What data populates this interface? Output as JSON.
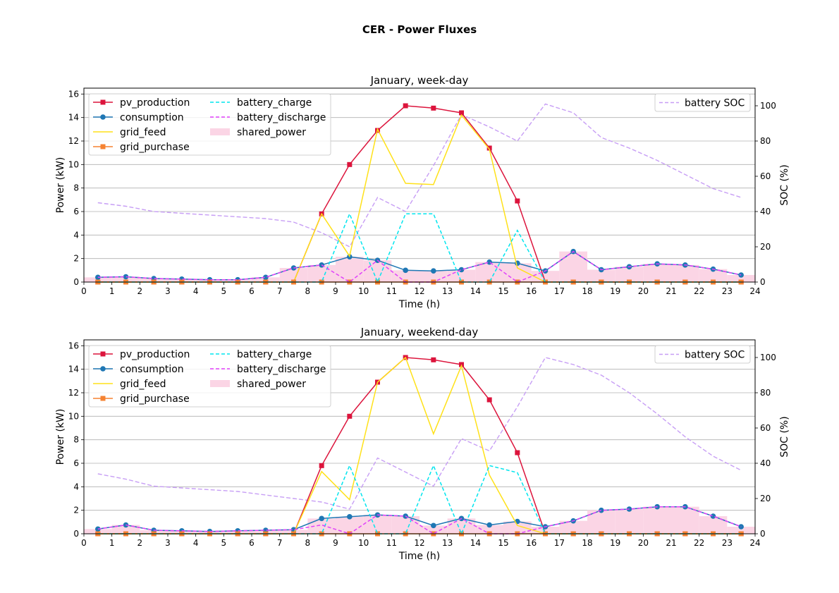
{
  "figure_title": "CER - Power Fluxes",
  "chart_data": [
    {
      "type": "line",
      "title": "January, week-day",
      "xlabel": "Time (h)",
      "ylabel": "Power (kW)",
      "y2label": "SOC (%)",
      "xlim": [
        0,
        24
      ],
      "ylim": [
        0,
        16.5
      ],
      "y2lim": [
        0,
        110
      ],
      "xticks": [
        0,
        1,
        2,
        3,
        4,
        5,
        6,
        7,
        8,
        9,
        10,
        11,
        12,
        13,
        14,
        15,
        16,
        17,
        18,
        19,
        20,
        21,
        22,
        23,
        24
      ],
      "yticks": [
        0,
        2,
        4,
        6,
        8,
        10,
        12,
        14,
        16
      ],
      "y2ticks": [
        0,
        20,
        40,
        60,
        80,
        100
      ],
      "grid": "horizontal",
      "legend_left": "upper-left",
      "legend_right": "upper-right",
      "x": [
        0.5,
        1.5,
        2.5,
        3.5,
        4.5,
        5.5,
        6.5,
        7.5,
        8.5,
        9.5,
        10.5,
        11.5,
        12.5,
        13.5,
        14.5,
        15.5,
        16.5,
        17.5,
        18.5,
        19.5,
        20.5,
        21.5,
        22.5,
        23.5
      ],
      "series": [
        {
          "name": "pv_production",
          "color": "#dc143c",
          "style": "solid",
          "marker": "square",
          "values": [
            0,
            0,
            0,
            0,
            0,
            0,
            0,
            0,
            5.8,
            10.0,
            12.9,
            15.0,
            14.8,
            14.4,
            11.4,
            6.9,
            0,
            0,
            0,
            0,
            0,
            0,
            0,
            0
          ]
        },
        {
          "name": "consumption",
          "color": "#1f77b4",
          "style": "solid",
          "marker": "circle",
          "values": [
            0.4,
            0.45,
            0.3,
            0.25,
            0.2,
            0.2,
            0.4,
            1.2,
            1.45,
            2.15,
            1.85,
            1.0,
            0.95,
            1.05,
            1.7,
            1.6,
            0.95,
            2.6,
            1.05,
            1.3,
            1.55,
            1.45,
            1.1,
            0.6
          ]
        },
        {
          "name": "grid_feed",
          "color": "#ffe119",
          "style": "solid",
          "marker": "none",
          "values": [
            0,
            0,
            0,
            0,
            0,
            0,
            0,
            0,
            5.8,
            2.2,
            13.0,
            8.4,
            8.3,
            14.2,
            11.3,
            1.2,
            0,
            0,
            0,
            0,
            0,
            0,
            0,
            0
          ]
        },
        {
          "name": "grid_purchase",
          "color": "#f58231",
          "style": "solid",
          "marker": "square",
          "values": [
            0,
            0,
            0,
            0,
            0,
            0,
            0,
            0,
            0,
            0,
            0,
            0,
            0,
            0,
            0,
            0,
            0,
            0,
            0,
            0,
            0,
            0,
            0,
            0
          ]
        },
        {
          "name": "battery_charge",
          "color": "#00e5ee",
          "style": "dashed",
          "marker": "none",
          "values": [
            0,
            0,
            0,
            0,
            0,
            0,
            0,
            0,
            0,
            5.8,
            0,
            5.8,
            5.8,
            0,
            0,
            4.4,
            0,
            0,
            0,
            0,
            0,
            0,
            0,
            0
          ]
        },
        {
          "name": "battery_discharge",
          "color": "#e040fb",
          "style": "dashed",
          "marker": "none",
          "values": [
            0.4,
            0.45,
            0.3,
            0.25,
            0.2,
            0.2,
            0.4,
            1.2,
            1.45,
            0,
            1.85,
            0,
            0,
            1.05,
            1.7,
            0,
            0.95,
            2.6,
            1.05,
            1.3,
            1.55,
            1.45,
            1.1,
            0.6
          ]
        }
      ],
      "bars": {
        "name": "shared_power",
        "color": "#fbd5e5",
        "values": [
          0.4,
          0.45,
          0.3,
          0.25,
          0.2,
          0.2,
          0.4,
          1.2,
          1.45,
          2.15,
          1.85,
          1.0,
          0.95,
          1.05,
          1.7,
          1.6,
          0.95,
          2.6,
          1.05,
          1.3,
          1.55,
          1.45,
          1.1,
          0.6
        ]
      },
      "soc": {
        "name": "battery SOC",
        "color": "#c79ef5",
        "style": "dashed",
        "values": [
          45,
          43,
          40,
          39,
          38,
          37,
          36,
          34,
          28,
          20,
          48,
          40,
          66,
          95,
          88,
          80,
          101,
          96,
          82,
          76,
          69,
          61,
          53,
          48
        ]
      }
    },
    {
      "type": "line",
      "title": "January, weekend-day",
      "xlabel": "Time (h)",
      "ylabel": "Power (kW)",
      "y2label": "SOC (%)",
      "xlim": [
        0,
        24
      ],
      "ylim": [
        0,
        16.5
      ],
      "y2lim": [
        0,
        110
      ],
      "xticks": [
        0,
        1,
        2,
        3,
        4,
        5,
        6,
        7,
        8,
        9,
        10,
        11,
        12,
        13,
        14,
        15,
        16,
        17,
        18,
        19,
        20,
        21,
        22,
        23,
        24
      ],
      "yticks": [
        0,
        2,
        4,
        6,
        8,
        10,
        12,
        14,
        16
      ],
      "y2ticks": [
        0,
        20,
        40,
        60,
        80,
        100
      ],
      "grid": "horizontal",
      "legend_left": "upper-left",
      "legend_right": "upper-right",
      "x": [
        0.5,
        1.5,
        2.5,
        3.5,
        4.5,
        5.5,
        6.5,
        7.5,
        8.5,
        9.5,
        10.5,
        11.5,
        12.5,
        13.5,
        14.5,
        15.5,
        16.5,
        17.5,
        18.5,
        19.5,
        20.5,
        21.5,
        22.5,
        23.5
      ],
      "series": [
        {
          "name": "pv_production",
          "color": "#dc143c",
          "style": "solid",
          "marker": "square",
          "values": [
            0,
            0,
            0,
            0,
            0,
            0,
            0,
            0,
            5.8,
            10.0,
            12.9,
            15.0,
            14.8,
            14.4,
            11.4,
            6.9,
            0,
            0,
            0,
            0,
            0,
            0,
            0,
            0
          ]
        },
        {
          "name": "consumption",
          "color": "#1f77b4",
          "style": "solid",
          "marker": "circle",
          "values": [
            0.4,
            0.75,
            0.3,
            0.25,
            0.2,
            0.25,
            0.3,
            0.35,
            1.3,
            1.45,
            1.6,
            1.5,
            0.7,
            1.3,
            0.75,
            1.05,
            0.6,
            1.1,
            2.0,
            2.1,
            2.3,
            2.3,
            1.5,
            0.6
          ]
        },
        {
          "name": "grid_feed",
          "color": "#ffe119",
          "style": "solid",
          "marker": "none",
          "values": [
            0,
            0,
            0,
            0,
            0,
            0,
            0,
            0,
            5.3,
            2.9,
            12.9,
            15.0,
            8.5,
            14.3,
            5.0,
            0.7,
            0,
            0,
            0,
            0,
            0,
            0,
            0,
            0
          ]
        },
        {
          "name": "grid_purchase",
          "color": "#f58231",
          "style": "solid",
          "marker": "square",
          "values": [
            0,
            0,
            0,
            0,
            0,
            0,
            0,
            0,
            0,
            0,
            0,
            0,
            0,
            0,
            0,
            0,
            0,
            0,
            0,
            0,
            0,
            0,
            0,
            0
          ]
        },
        {
          "name": "battery_charge",
          "color": "#00e5ee",
          "style": "dashed",
          "marker": "none",
          "values": [
            0,
            0,
            0,
            0,
            0,
            0,
            0,
            0,
            0,
            5.8,
            0,
            0,
            5.8,
            0,
            5.8,
            5.2,
            0,
            0,
            0,
            0,
            0,
            0,
            0,
            0
          ]
        },
        {
          "name": "battery_discharge",
          "color": "#e040fb",
          "style": "dashed",
          "marker": "none",
          "values": [
            0.4,
            0.75,
            0.3,
            0.25,
            0.2,
            0.25,
            0.3,
            0.35,
            0.75,
            0,
            1.6,
            1.5,
            0,
            1.3,
            0,
            0,
            0.6,
            1.1,
            2.0,
            2.1,
            2.3,
            2.3,
            1.5,
            0.6
          ]
        }
      ],
      "bars": {
        "name": "shared_power",
        "color": "#fbd5e5",
        "values": [
          0.4,
          0.75,
          0.3,
          0.25,
          0.2,
          0.25,
          0.3,
          0.35,
          1.3,
          1.45,
          1.6,
          1.5,
          0.7,
          1.3,
          0.75,
          1.05,
          0.6,
          1.1,
          2.0,
          2.1,
          2.3,
          2.3,
          1.5,
          0.6
        ]
      },
      "soc": {
        "name": "battery SOC",
        "color": "#c79ef5",
        "style": "dashed",
        "values": [
          34,
          31,
          27,
          26,
          25,
          24,
          22,
          20,
          18,
          14,
          43,
          35,
          27,
          54,
          47,
          72,
          100,
          96,
          90,
          80,
          68,
          55,
          44,
          36
        ]
      }
    }
  ]
}
